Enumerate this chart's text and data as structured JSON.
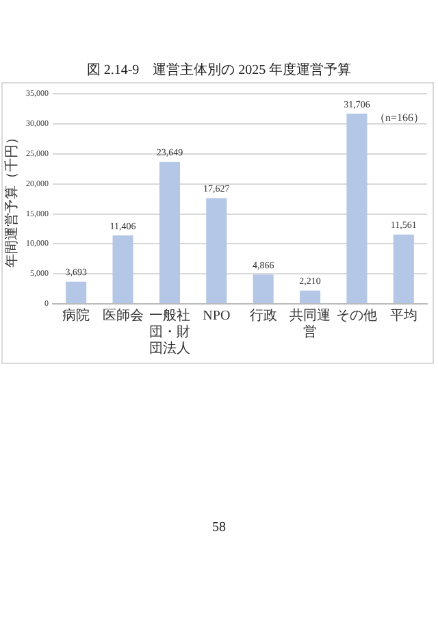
{
  "chart_data": {
    "type": "bar",
    "title": "図 2.14-9　運営主体別の 2025 年度運営予算",
    "ylabel": "年間運営予算（千円）",
    "categories": [
      "病院",
      "医師会",
      "一般社団・財団法人",
      "NPO",
      "行政",
      "共同運営",
      "その他",
      "平均"
    ],
    "values": [
      3693,
      11406,
      23649,
      17627,
      4866,
      2210,
      31706,
      11561
    ],
    "value_labels": [
      "3,693",
      "11,406",
      "23,649",
      "17,627",
      "4,866",
      "2,210",
      "31,706",
      "11,561"
    ],
    "color": "#b4c7e7",
    "ylim": [
      0,
      35000
    ],
    "yticks": [
      {
        "value": 0,
        "label": "0"
      },
      {
        "value": 5000,
        "label": "5,000"
      },
      {
        "value": 10000,
        "label": "10,000"
      },
      {
        "value": 15000,
        "label": "15,000"
      },
      {
        "value": 20000,
        "label": "20,000"
      },
      {
        "value": 25000,
        "label": "25,000"
      },
      {
        "value": 30000,
        "label": "30,000"
      },
      {
        "value": 35000,
        "label": "35,000"
      }
    ],
    "grid": "y",
    "legend": false,
    "annotations": [
      "（n=166）",
      "58"
    ]
  }
}
